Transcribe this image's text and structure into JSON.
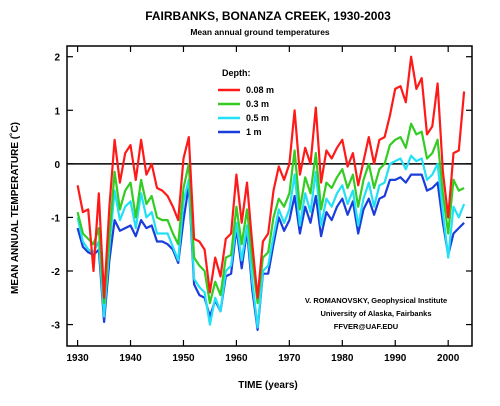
{
  "chart_data": {
    "type": "line",
    "title": "FAIRBANKS, BONANZA CREEK, 1930-2003",
    "subtitle": "Mean annual ground temperatures",
    "xlabel": "TIME (years)",
    "ylabel": "MEAN ANNUAL TEMPERATURE (˚C)",
    "xlim": [
      1928,
      2004.5
    ],
    "ylim": [
      -3.4,
      2.2
    ],
    "xticks": [
      "1930",
      "1940",
      "1950",
      "1960",
      "1970",
      "1980",
      "1990",
      "2000"
    ],
    "yticks": [
      "2",
      "1",
      "0",
      "-1",
      "-2",
      "-3"
    ],
    "reference_line": 0,
    "grid": false,
    "legend": {
      "title": "Depth:",
      "placement": "top-left inside",
      "entries": [
        "0.08 m",
        "0.3 m",
        "0.5 m",
        "1 m"
      ]
    },
    "annotation": [
      "V. ROMANOVSKY, Geophysical Institute",
      "University of Alaska, Fairbanks",
      "FFVER@UAF.EDU"
    ],
    "x": [
      1930,
      1931,
      1932,
      1933,
      1934,
      1935,
      1936,
      1937,
      1938,
      1939,
      1940,
      1941,
      1942,
      1943,
      1944,
      1945,
      1946,
      1947,
      1948,
      1949,
      1950,
      1951,
      1952,
      1953,
      1954,
      1955,
      1956,
      1957,
      1958,
      1959,
      1960,
      1961,
      1962,
      1963,
      1964,
      1965,
      1966,
      1967,
      1968,
      1969,
      1970,
      1971,
      1972,
      1973,
      1974,
      1975,
      1976,
      1977,
      1978,
      1979,
      1980,
      1981,
      1982,
      1983,
      1984,
      1985,
      1986,
      1987,
      1988,
      1989,
      1990,
      1991,
      1992,
      1993,
      1994,
      1995,
      1996,
      1997,
      1998,
      1999,
      2000,
      2001,
      2002,
      2003
    ],
    "series": [
      {
        "name": "0.08 m",
        "color": "#ff1a1a",
        "values": [
          -0.4,
          -0.9,
          -0.85,
          -2.0,
          -0.55,
          -2.5,
          -0.8,
          0.45,
          -0.35,
          0.2,
          0.35,
          -0.3,
          0.45,
          -0.2,
          0.0,
          -0.45,
          -0.5,
          -0.6,
          -0.8,
          -1.05,
          0.1,
          0.5,
          -1.4,
          -1.45,
          -1.6,
          -2.4,
          -1.75,
          -2.1,
          -1.4,
          -1.3,
          -0.2,
          -1.1,
          -0.35,
          -1.5,
          -2.5,
          -1.45,
          -1.3,
          -0.5,
          -0.05,
          -0.3,
          0.0,
          1.0,
          -0.2,
          0.3,
          0.0,
          1.05,
          -0.35,
          0.25,
          0.1,
          0.3,
          0.45,
          -0.05,
          0.2,
          -0.4,
          0.05,
          0.5,
          0.0,
          0.45,
          0.5,
          0.9,
          1.4,
          1.45,
          1.15,
          2.0,
          1.4,
          1.6,
          0.55,
          0.7,
          1.5,
          -0.15,
          -1.0,
          0.2,
          0.25,
          1.35
        ]
      },
      {
        "name": "0.3 m",
        "color": "#33cc22",
        "values": [
          -0.9,
          -1.3,
          -1.4,
          -1.5,
          -1.2,
          -2.6,
          -1.35,
          -0.15,
          -0.85,
          -0.5,
          -0.35,
          -1.0,
          -0.3,
          -0.75,
          -0.6,
          -1.0,
          -1.05,
          -1.05,
          -1.3,
          -1.5,
          -0.45,
          0.0,
          -1.75,
          -1.9,
          -2.0,
          -2.6,
          -2.2,
          -2.45,
          -1.75,
          -1.7,
          -0.8,
          -1.5,
          -0.85,
          -1.8,
          -2.6,
          -1.75,
          -1.65,
          -1.0,
          -0.65,
          -0.8,
          -0.55,
          0.25,
          -0.85,
          -0.25,
          -0.55,
          0.2,
          -0.85,
          -0.35,
          -0.45,
          -0.25,
          -0.1,
          -0.45,
          -0.2,
          -0.8,
          -0.3,
          0.0,
          -0.45,
          -0.1,
          0.0,
          0.35,
          0.45,
          0.5,
          0.3,
          0.75,
          0.55,
          0.6,
          0.1,
          0.2,
          0.45,
          -0.55,
          -1.3,
          -0.3,
          -0.5,
          -0.45
        ]
      },
      {
        "name": "0.5 m",
        "color": "#22e0f5",
        "values": [
          -1.0,
          -1.45,
          -1.6,
          -1.65,
          -1.45,
          -2.85,
          -1.55,
          -0.5,
          -1.05,
          -0.8,
          -0.7,
          -1.2,
          -0.55,
          -1.0,
          -0.9,
          -1.3,
          -1.3,
          -1.3,
          -1.55,
          -1.8,
          -0.7,
          -0.3,
          -2.15,
          -2.3,
          -2.4,
          -3.0,
          -2.5,
          -2.75,
          -2.0,
          -1.9,
          -1.1,
          -1.8,
          -1.15,
          -2.2,
          -3.05,
          -2.0,
          -1.9,
          -1.35,
          -0.85,
          -1.1,
          -0.85,
          -0.2,
          -1.15,
          -0.55,
          -0.9,
          -0.15,
          -1.15,
          -0.65,
          -0.8,
          -0.55,
          -0.4,
          -0.75,
          -0.5,
          -1.15,
          -0.65,
          -0.35,
          -0.8,
          -0.4,
          -0.35,
          0.0,
          0.05,
          0.1,
          -0.1,
          0.15,
          0.05,
          0.1,
          -0.3,
          -0.2,
          0.0,
          -0.9,
          -1.75,
          -0.8,
          -1.0,
          -0.75
        ]
      },
      {
        "name": "1 m",
        "color": "#1a3ddb",
        "values": [
          -1.2,
          -1.55,
          -1.65,
          -1.7,
          -1.6,
          -2.95,
          -1.8,
          -1.05,
          -1.25,
          -1.2,
          -1.15,
          -1.35,
          -1.05,
          -1.2,
          -1.15,
          -1.45,
          -1.45,
          -1.5,
          -1.6,
          -1.85,
          -1.05,
          -0.4,
          -2.25,
          -2.45,
          -2.5,
          -2.85,
          -2.55,
          -2.75,
          -2.1,
          -2.05,
          -1.2,
          -1.95,
          -1.25,
          -2.35,
          -3.1,
          -2.05,
          -2.05,
          -1.5,
          -1.0,
          -1.25,
          -1.05,
          -0.6,
          -1.3,
          -0.8,
          -1.1,
          -0.6,
          -1.35,
          -0.9,
          -1.05,
          -0.8,
          -0.65,
          -0.95,
          -0.7,
          -1.3,
          -0.85,
          -0.65,
          -0.95,
          -0.65,
          -0.6,
          -0.3,
          -0.3,
          -0.25,
          -0.35,
          -0.2,
          -0.2,
          -0.2,
          -0.5,
          -0.45,
          -0.35,
          -1.1,
          -1.7,
          -1.3,
          -1.2,
          -1.1
        ]
      }
    ]
  }
}
